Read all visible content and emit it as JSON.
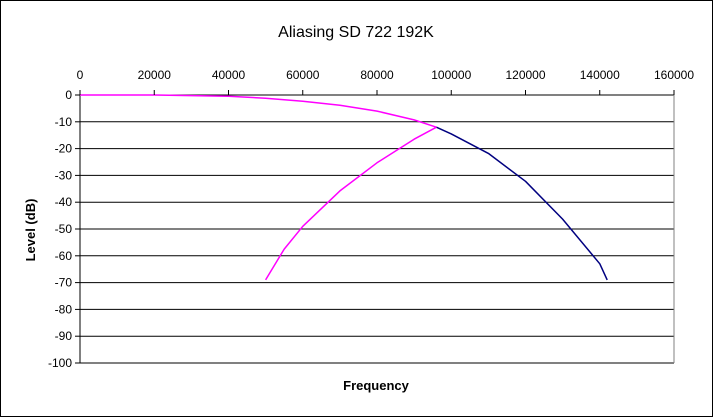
{
  "chart_data": {
    "type": "line",
    "title": "Aliasing SD 722 192K",
    "xlabel": "Frequency",
    "ylabel": "Level (dB)",
    "xlim": [
      0,
      160000
    ],
    "ylim": [
      -100,
      0
    ],
    "x_ticks": [
      "0",
      "20000",
      "40000",
      "60000",
      "80000",
      "100000",
      "120000",
      "140000",
      "160000"
    ],
    "y_ticks": [
      "0",
      "-10",
      "-20",
      "-30",
      "-40",
      "-50",
      "-60",
      "-70",
      "-80",
      "-90",
      "-100"
    ],
    "x_axis_position": "top",
    "grid": "horizontal",
    "legend": "none",
    "series": [
      {
        "color": "#FF00FF",
        "x": [
          0,
          20000,
          40000,
          50000,
          60000,
          70000,
          80000,
          90000,
          96000
        ],
        "y": [
          0,
          0,
          -0.5,
          -1.2,
          -2.3,
          -3.8,
          -6.0,
          -9.3,
          -12.0
        ]
      },
      {
        "color": "#000080",
        "x": [
          96000,
          100000,
          110000,
          120000,
          130000,
          140000,
          142000
        ],
        "y": [
          -12.0,
          -14.5,
          -21.8,
          -32.2,
          -46.3,
          -63.0,
          -69.0
        ]
      },
      {
        "color": "#FF00FF",
        "x": [
          96000,
          90000,
          80000,
          70000,
          60000,
          55000,
          50000
        ],
        "y": [
          -12.0,
          -16.5,
          -25.3,
          -35.8,
          -49.0,
          -57.5,
          -69.0
        ]
      }
    ]
  }
}
